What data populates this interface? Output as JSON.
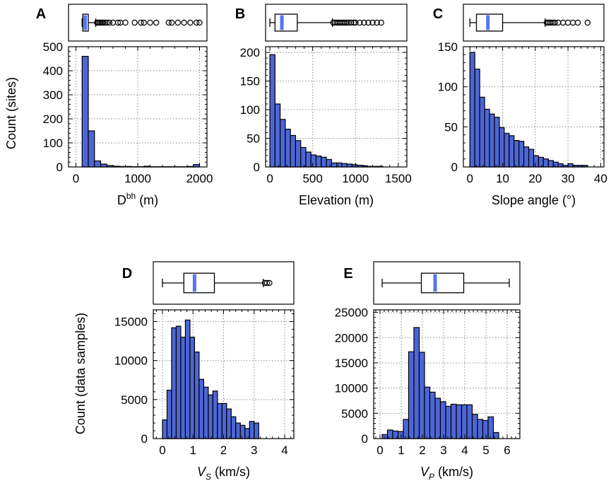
{
  "colors": {
    "bar": "#4d66d6",
    "median": "#5577ee",
    "axis": "#000000",
    "grid": "#888888"
  },
  "chart_data": [
    {
      "id": "A",
      "panel_label": "A",
      "type": "bar",
      "title": "",
      "xlabel": "D",
      "xlabel_sup": "bh",
      "xlabel_suffix": " (m)",
      "ylabel": "Count (sites)",
      "grid": true,
      "xlim": [
        -120,
        2120
      ],
      "ylim": [
        0,
        500
      ],
      "xticks": [
        0,
        1000,
        2000
      ],
      "yticks": [
        0,
        100,
        200,
        300,
        400,
        500
      ],
      "xtick_labels": [
        "0",
        "1000",
        "2000"
      ],
      "ytick_labels": [
        "0",
        "100",
        "200",
        "300",
        "400",
        "500"
      ],
      "bin_edges": [
        100,
        200,
        300,
        400,
        500,
        600,
        700,
        800,
        900,
        1000,
        1100,
        1200,
        1300,
        1400,
        1500,
        1600,
        1700,
        1800,
        1900,
        2000
      ],
      "counts": [
        460,
        150,
        25,
        12,
        6,
        3,
        2,
        2,
        1,
        1,
        3,
        1,
        1,
        1,
        1,
        1,
        1,
        2,
        10
      ],
      "boxplot": {
        "q1": 110,
        "median": 150,
        "q3": 200,
        "whisker_low": 100,
        "whisker_high": 320,
        "outliers": [
          340,
          360,
          380,
          400,
          420,
          440,
          470,
          500,
          540,
          600,
          680,
          720,
          800,
          950,
          1050,
          1100,
          1200,
          1300,
          1500,
          1550,
          1650,
          1750,
          1850,
          1950,
          2000
        ]
      }
    },
    {
      "id": "B",
      "panel_label": "B",
      "type": "bar",
      "title": "",
      "xlabel": "Elevation (m)",
      "ylabel": "",
      "grid": true,
      "xlim": [
        -50,
        1600
      ],
      "ylim": [
        0,
        210
      ],
      "xticks": [
        0,
        500,
        1000,
        1500
      ],
      "yticks": [
        0,
        50,
        100,
        150,
        200
      ],
      "xtick_labels": [
        "0",
        "500",
        "1000",
        "1500"
      ],
      "ytick_labels": [
        "0",
        "50",
        "100",
        "150",
        "200"
      ],
      "bin_edges": [
        0,
        60,
        120,
        180,
        240,
        300,
        360,
        420,
        480,
        540,
        600,
        660,
        720,
        780,
        840,
        900,
        960,
        1020,
        1080,
        1140,
        1200,
        1260,
        1320
      ],
      "counts": [
        196,
        110,
        83,
        66,
        55,
        46,
        34,
        26,
        21,
        19,
        17,
        13,
        7,
        7,
        6,
        5,
        4,
        3,
        2,
        1,
        1,
        1
      ],
      "boxplot": {
        "q1": 60,
        "median": 140,
        "q3": 320,
        "whisker_low": 0,
        "whisker_high": 730,
        "outliers": [
          740,
          760,
          780,
          800,
          820,
          840,
          860,
          880,
          900,
          920,
          950,
          980,
          1000,
          1050,
          1100,
          1150,
          1200,
          1250,
          1300
        ]
      }
    },
    {
      "id": "C",
      "panel_label": "C",
      "type": "bar",
      "title": "",
      "xlabel": "Slope angle (°)",
      "ylabel": "",
      "grid": true,
      "xlim": [
        -2,
        41
      ],
      "ylim": [
        0,
        150
      ],
      "xticks": [
        0,
        10,
        20,
        30,
        40
      ],
      "yticks": [
        0,
        50,
        100,
        150
      ],
      "xtick_labels": [
        "0",
        "10",
        "20",
        "30",
        "40"
      ],
      "ytick_labels": [
        "0",
        "50",
        "100",
        "150"
      ],
      "bin_edges": [
        0,
        1.5,
        3,
        4.5,
        6,
        7.5,
        9,
        10.5,
        12,
        13.5,
        15,
        16.5,
        18,
        19.5,
        21,
        22.5,
        24,
        25.5,
        27,
        28.5,
        30,
        31.5,
        33,
        34.5,
        36
      ],
      "counts": [
        143,
        122,
        87,
        72,
        66,
        62,
        49,
        42,
        39,
        33,
        32,
        25,
        22,
        14,
        12,
        10,
        8,
        6,
        4,
        2,
        4,
        2,
        2,
        2
      ],
      "boxplot": {
        "q1": 2,
        "median": 5.5,
        "q3": 10,
        "whisker_low": 0,
        "whisker_high": 23,
        "outliers": [
          23.5,
          24,
          24.5,
          25,
          25.5,
          26,
          27,
          28.5,
          30,
          31.5,
          33,
          36
        ]
      }
    },
    {
      "id": "D",
      "panel_label": "D",
      "type": "bar",
      "title": "",
      "xlabel": "V",
      "xlabel_sub": "S",
      "xlabel_suffix": " (km/s)",
      "ylabel": "Count (data samples)",
      "grid": true,
      "xlim": [
        -0.3,
        4.3
      ],
      "ylim": [
        0,
        16500
      ],
      "xticks": [
        0,
        1,
        2,
        3,
        4
      ],
      "yticks": [
        0,
        5000,
        10000,
        15000
      ],
      "xtick_labels": [
        "0",
        "1",
        "2",
        "3",
        "4"
      ],
      "ytick_labels": [
        "0",
        "5000",
        "10000",
        "15000"
      ],
      "bin_edges": [
        0,
        0.15,
        0.3,
        0.45,
        0.6,
        0.75,
        0.9,
        1.05,
        1.2,
        1.35,
        1.5,
        1.65,
        1.8,
        1.95,
        2.1,
        2.25,
        2.4,
        2.55,
        2.7,
        2.85,
        3.0,
        3.15,
        3.3
      ],
      "counts": [
        2400,
        6200,
        14200,
        14400,
        13000,
        15200,
        13000,
        11100,
        7600,
        6600,
        5600,
        6100,
        4500,
        4500,
        3800,
        2800,
        2000,
        1700,
        1300,
        2200,
        2000,
        0
      ],
      "boxplot": {
        "q1": 0.7,
        "median": 1.05,
        "q3": 1.7,
        "whisker_low": 0,
        "whisker_high": 3.3,
        "outliers": [
          3.35,
          3.42,
          3.5
        ]
      }
    },
    {
      "id": "E",
      "panel_label": "E",
      "type": "bar",
      "title": "",
      "xlabel": "V",
      "xlabel_sub": "P",
      "xlabel_suffix": " (km/s)",
      "ylabel": "",
      "grid": true,
      "xlim": [
        -0.3,
        6.6
      ],
      "ylim": [
        0,
        25500
      ],
      "xticks": [
        0,
        1,
        2,
        3,
        4,
        5,
        6
      ],
      "yticks": [
        0,
        5000,
        10000,
        15000,
        20000,
        25000
      ],
      "xtick_labels": [
        "0",
        "1",
        "2",
        "3",
        "4",
        "5",
        "6"
      ],
      "ytick_labels": [
        "0",
        "5000",
        "10000",
        "15000",
        "20000",
        "25000"
      ],
      "bin_edges": [
        0.1,
        0.35,
        0.6,
        0.85,
        1.1,
        1.35,
        1.6,
        1.85,
        2.1,
        2.35,
        2.6,
        2.85,
        3.1,
        3.35,
        3.6,
        3.85,
        4.1,
        4.35,
        4.6,
        4.85,
        5.1,
        5.35,
        5.6,
        5.85,
        6.1
      ],
      "counts": [
        800,
        1700,
        1500,
        1400,
        3800,
        17200,
        22000,
        17100,
        10200,
        9200,
        8000,
        7300,
        6400,
        6800,
        6700,
        6700,
        6700,
        4800,
        3800,
        3600,
        4300,
        1200,
        0,
        0
      ],
      "boxplot": {
        "q1": 1.95,
        "median": 2.6,
        "q3": 3.95,
        "whisker_low": 0.1,
        "whisker_high": 6.1,
        "outliers": []
      }
    }
  ]
}
